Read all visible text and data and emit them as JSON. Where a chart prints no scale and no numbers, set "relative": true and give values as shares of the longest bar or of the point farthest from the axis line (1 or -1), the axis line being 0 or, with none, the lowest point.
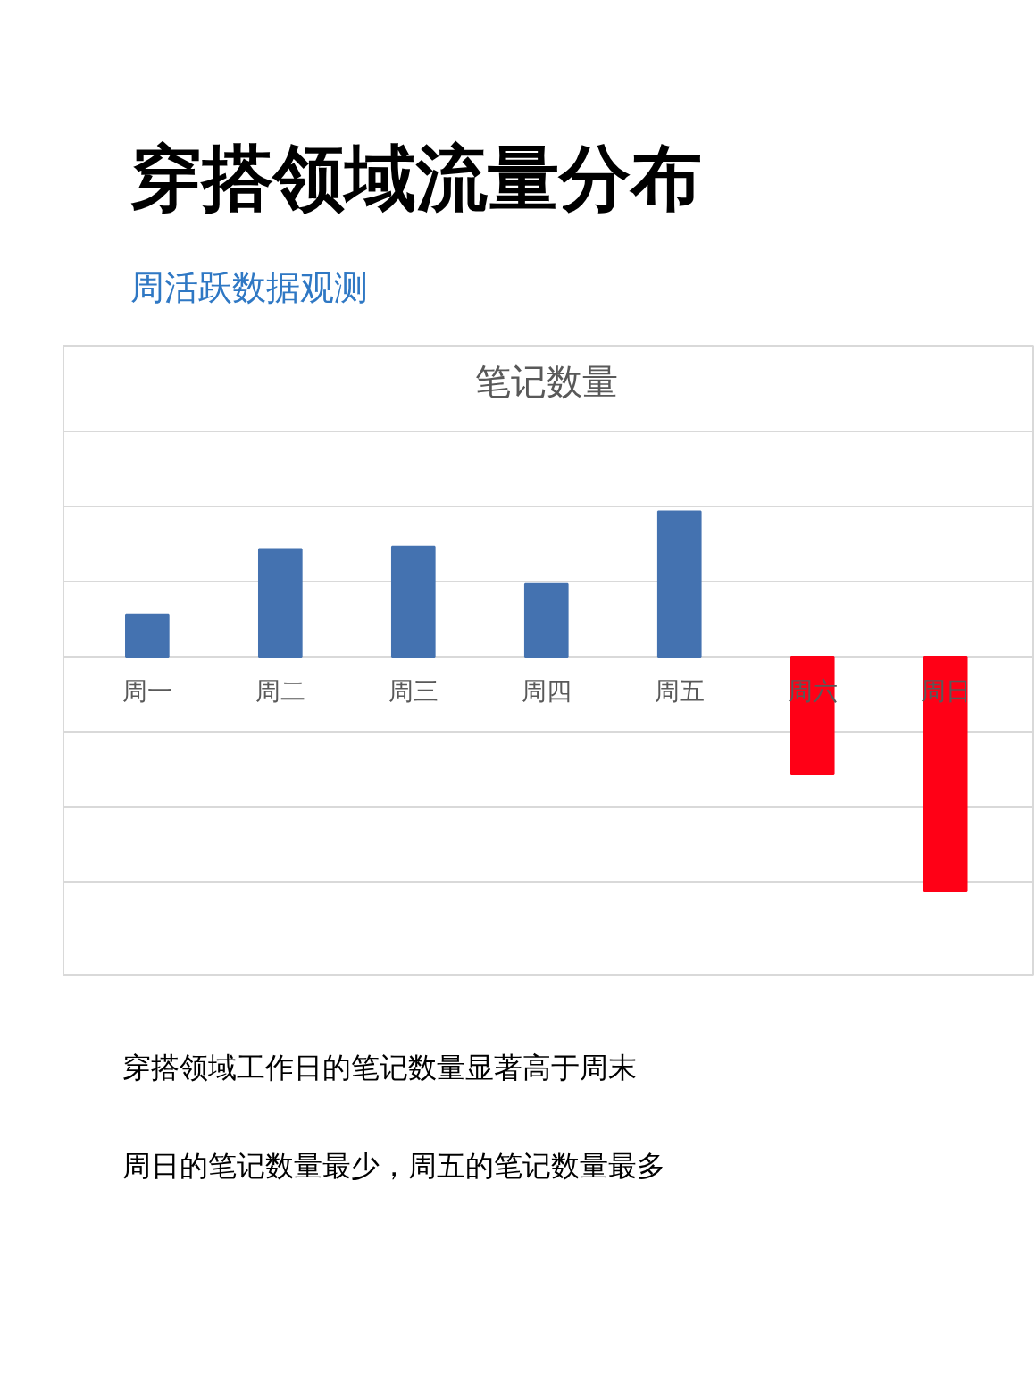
{
  "chart_data": {
    "type": "bar",
    "title": "笔记数量",
    "categories": [
      "周一",
      "周二",
      "周三",
      "周四",
      "周五",
      "周六",
      "周日"
    ],
    "values": [
      0.18,
      0.46,
      0.47,
      0.31,
      0.62,
      -0.5,
      -1
    ],
    "colors": [
      "#4472b0",
      "#4472b0",
      "#4472b0",
      "#4472b0",
      "#4472b0",
      "#ff0016",
      "#ff0016"
    ],
    "relative": true,
    "grid": "y",
    "annotations": [
      "穿搭领域流量分布",
      "周活跃数据观测",
      "穿搭领域工作日的笔记数量显著高于周末",
      "周日的笔记数量最少，周五的笔记数量最多"
    ]
  }
}
